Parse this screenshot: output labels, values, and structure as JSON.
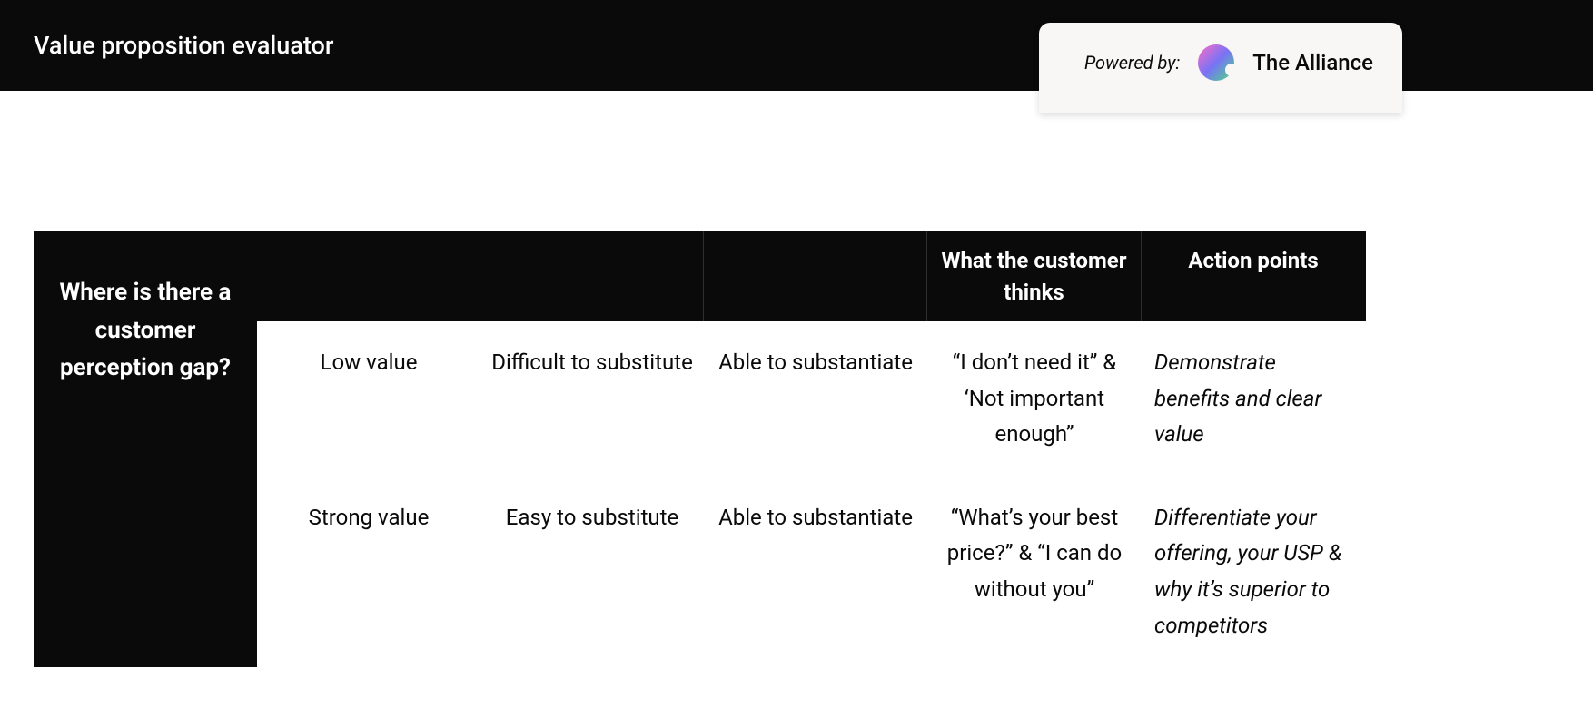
{
  "header": {
    "title": "Value proposition evaluator",
    "powered_by_label": "Powered by:",
    "brand_name": "The Alliance"
  },
  "table": {
    "row_header": "Where is there a customer perception gap?",
    "column_headers": {
      "col4": "What the customer thinks",
      "col5": "Action points"
    },
    "rows": [
      {
        "value_level": "Low value",
        "substitute": "Difficult to substitute",
        "substantiate": "Able to substantiate",
        "customer_thinks": "“I don’t need it” & ‘Not important enough”",
        "action_points": "Demonstrate benefits and clear value"
      },
      {
        "value_level": "Strong value",
        "substitute": "Easy to substitute",
        "substantiate": "Able to substantiate",
        "customer_thinks": "“What’s your best price?” & “I can do without you”",
        "action_points": "Differentiate your offering, your USP & why it’s superior to competitors"
      }
    ]
  },
  "styling": {
    "header_bg": "#0a0a0a",
    "header_text_color": "#ffffff",
    "badge_bg": "#f8f7f5",
    "body_text_color": "#0a0a0a",
    "body_font_size": 24,
    "header_title_font_size": 27,
    "row_header_font_size": 26,
    "logo_gradient": [
      "#ff6ec4",
      "#7873f5",
      "#4ade80"
    ]
  }
}
